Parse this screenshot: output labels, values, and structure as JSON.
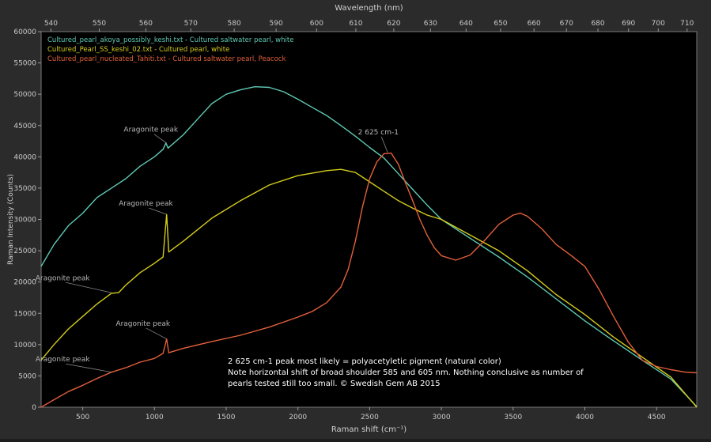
{
  "chart_data": {
    "type": "line",
    "title": "",
    "xlabel": "Raman shift (cm⁻¹)",
    "ylabel": "Raman Intensity (Counts)",
    "top_axis_label": "Wavelength (nm)",
    "xlim": [
      210,
      4780
    ],
    "ylim": [
      0,
      60000
    ],
    "x_ticks": [
      500,
      1000,
      1500,
      2000,
      2500,
      3000,
      3500,
      4000,
      4500
    ],
    "y_ticks": [
      0,
      5000,
      10000,
      15000,
      20000,
      25000,
      30000,
      35000,
      40000,
      45000,
      50000,
      55000,
      60000
    ],
    "top_ticks": [
      540,
      550,
      560,
      570,
      580,
      590,
      600,
      610,
      620,
      630,
      640,
      650,
      660,
      670,
      680,
      690,
      700,
      710
    ],
    "excitation_nm": 532,
    "grid": false,
    "legend_position": "top-left",
    "series": [
      {
        "name": "Cultured_pearl_akoya_possibly_keshi.txt - Cultured saltwater pearl, white",
        "color": "#5fc9b3",
        "points": [
          [
            210,
            22500
          ],
          [
            300,
            26000
          ],
          [
            400,
            29000
          ],
          [
            500,
            31000
          ],
          [
            600,
            33500
          ],
          [
            700,
            35000
          ],
          [
            800,
            36500
          ],
          [
            900,
            38500
          ],
          [
            1000,
            40000
          ],
          [
            1060,
            41200
          ],
          [
            1080,
            42200
          ],
          [
            1095,
            41400
          ],
          [
            1200,
            43500
          ],
          [
            1300,
            46000
          ],
          [
            1400,
            48500
          ],
          [
            1500,
            50000
          ],
          [
            1600,
            50700
          ],
          [
            1700,
            51200
          ],
          [
            1800,
            51100
          ],
          [
            1900,
            50400
          ],
          [
            2000,
            49200
          ],
          [
            2100,
            47900
          ],
          [
            2200,
            46600
          ],
          [
            2300,
            45000
          ],
          [
            2400,
            43300
          ],
          [
            2500,
            41500
          ],
          [
            2600,
            39800
          ],
          [
            2700,
            37300
          ],
          [
            2800,
            34800
          ],
          [
            2900,
            32300
          ],
          [
            3000,
            30000
          ],
          [
            3200,
            27000
          ],
          [
            3400,
            24000
          ],
          [
            3600,
            20800
          ],
          [
            3800,
            17300
          ],
          [
            4000,
            13800
          ],
          [
            4200,
            10600
          ],
          [
            4400,
            7500
          ],
          [
            4600,
            4500
          ],
          [
            4780,
            100
          ]
        ]
      },
      {
        "name": "Cultured_Pearl_SS_keshi_02.txt - Cultured pearl, white",
        "color": "#d4cc1a",
        "points": [
          [
            210,
            7500
          ],
          [
            300,
            10000
          ],
          [
            400,
            12500
          ],
          [
            500,
            14500
          ],
          [
            600,
            16500
          ],
          [
            700,
            18200
          ],
          [
            750,
            18300
          ],
          [
            800,
            19500
          ],
          [
            900,
            21500
          ],
          [
            1000,
            23000
          ],
          [
            1060,
            24000
          ],
          [
            1085,
            30800
          ],
          [
            1100,
            24800
          ],
          [
            1200,
            26500
          ],
          [
            1400,
            30200
          ],
          [
            1600,
            33000
          ],
          [
            1800,
            35500
          ],
          [
            2000,
            37000
          ],
          [
            2200,
            37800
          ],
          [
            2300,
            38000
          ],
          [
            2400,
            37500
          ],
          [
            2500,
            36000
          ],
          [
            2600,
            34500
          ],
          [
            2700,
            33000
          ],
          [
            2800,
            31800
          ],
          [
            2900,
            30700
          ],
          [
            3000,
            30000
          ],
          [
            3200,
            27500
          ],
          [
            3400,
            25000
          ],
          [
            3600,
            21800
          ],
          [
            3800,
            18000
          ],
          [
            4000,
            14800
          ],
          [
            4200,
            11200
          ],
          [
            4400,
            8000
          ],
          [
            4600,
            4800
          ],
          [
            4780,
            0
          ]
        ]
      },
      {
        "name": "Cultured_pearl_nucleated_Tahiti.txt - Cultured saltwater pearl, Peacock",
        "color": "#e2603a",
        "points": [
          [
            210,
            0
          ],
          [
            300,
            1200
          ],
          [
            400,
            2500
          ],
          [
            500,
            3500
          ],
          [
            600,
            4600
          ],
          [
            700,
            5600
          ],
          [
            800,
            6300
          ],
          [
            900,
            7200
          ],
          [
            1000,
            7800
          ],
          [
            1060,
            8600
          ],
          [
            1085,
            10900
          ],
          [
            1100,
            8700
          ],
          [
            1200,
            9400
          ],
          [
            1400,
            10500
          ],
          [
            1600,
            11500
          ],
          [
            1800,
            12800
          ],
          [
            2000,
            14400
          ],
          [
            2100,
            15300
          ],
          [
            2200,
            16700
          ],
          [
            2300,
            19200
          ],
          [
            2350,
            22000
          ],
          [
            2400,
            26500
          ],
          [
            2450,
            32000
          ],
          [
            2500,
            36500
          ],
          [
            2550,
            39200
          ],
          [
            2600,
            40500
          ],
          [
            2650,
            40600
          ],
          [
            2700,
            38800
          ],
          [
            2750,
            35800
          ],
          [
            2800,
            33000
          ],
          [
            2850,
            30000
          ],
          [
            2900,
            27500
          ],
          [
            2950,
            25500
          ],
          [
            3000,
            24200
          ],
          [
            3100,
            23500
          ],
          [
            3200,
            24300
          ],
          [
            3300,
            26600
          ],
          [
            3400,
            29200
          ],
          [
            3500,
            30700
          ],
          [
            3550,
            31000
          ],
          [
            3600,
            30500
          ],
          [
            3700,
            28500
          ],
          [
            3800,
            26000
          ],
          [
            3900,
            24300
          ],
          [
            4000,
            22500
          ],
          [
            4100,
            18800
          ],
          [
            4200,
            14500
          ],
          [
            4300,
            10500
          ],
          [
            4400,
            7500
          ],
          [
            4500,
            6500
          ],
          [
            4600,
            6000
          ],
          [
            4700,
            5600
          ],
          [
            4780,
            5500
          ]
        ]
      }
    ],
    "annotations": [
      {
        "text": "Aragonite peak",
        "x": 1085,
        "y": 42200,
        "label_x": 975,
        "label_y": 44000,
        "color": "#5fc9b3"
      },
      {
        "text": "Aragonite peak",
        "x": 1085,
        "y": 30800,
        "label_x": 940,
        "label_y": 32200,
        "color": "#d4cc1a"
      },
      {
        "text": "Aragonite peak",
        "x": 700,
        "y": 18300,
        "label_x": 360,
        "label_y": 20300,
        "color": "#d4cc1a"
      },
      {
        "text": "Aragonite peak",
        "x": 1085,
        "y": 10900,
        "label_x": 920,
        "label_y": 13000,
        "color": "#e2603a"
      },
      {
        "text": "Aragonite peak",
        "x": 700,
        "y": 5600,
        "label_x": 360,
        "label_y": 7300,
        "color": "#e2603a"
      },
      {
        "text": "2 625 cm-1",
        "x": 2625,
        "y": 40700,
        "label_x": 2560,
        "label_y": 43600,
        "color": "#e2603a"
      }
    ],
    "notes": [
      "2 625 cm-1 peak most likely = polyacetyletic pigment (natural color)",
      "Note horizontal shift of broad shoulder 585 and 605 nm. Nothing conclusive as  number of",
      "pearls tested still too small. © Swedish Gem AB 2015"
    ]
  }
}
